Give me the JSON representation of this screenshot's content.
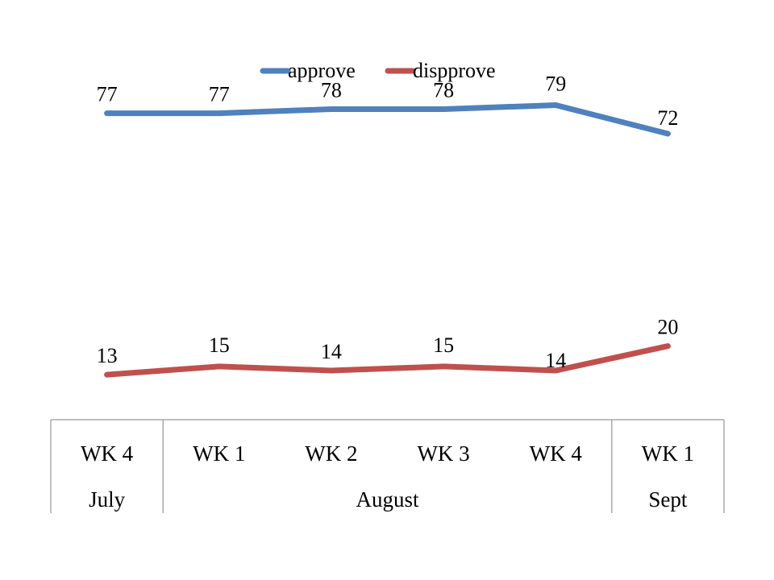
{
  "chart_data": {
    "type": "line",
    "categories": [
      "WK 4",
      "WK 1",
      "WK 2",
      "WK 3",
      "WK 4",
      "WK 1"
    ],
    "groups": [
      {
        "label": "July",
        "span": 1
      },
      {
        "label": "August",
        "span": 4
      },
      {
        "label": "Sept",
        "span": 1
      }
    ],
    "series": [
      {
        "name": "approve",
        "color": "#4F81BD",
        "values": [
          77,
          77,
          78,
          78,
          79,
          72
        ]
      },
      {
        "name": "dispprove",
        "color": "#C0504D",
        "values": [
          13,
          15,
          14,
          15,
          14,
          20
        ]
      }
    ],
    "legend_position": "top",
    "grid": false,
    "ylim": [
      0,
      100
    ]
  }
}
